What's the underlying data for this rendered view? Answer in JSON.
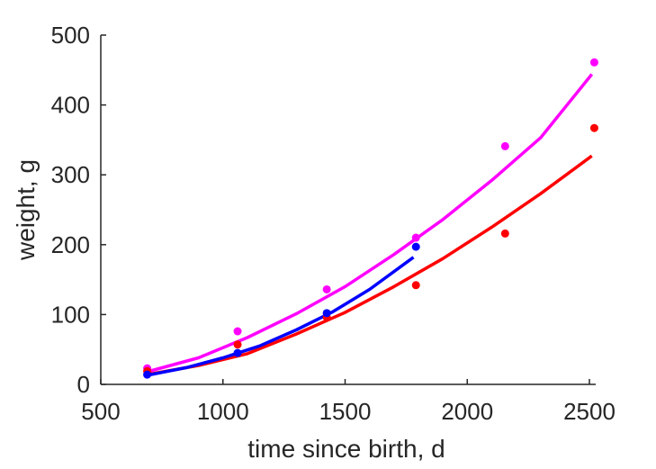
{
  "chart_data": {
    "type": "scatter",
    "title": "",
    "xlabel": "time since birth, d",
    "ylabel": "weight, g",
    "xlim": [
      500,
      2500
    ],
    "ylim": [
      0,
      500
    ],
    "xticks": [
      500,
      1000,
      1500,
      2000,
      2500
    ],
    "yticks": [
      0,
      100,
      200,
      300,
      400,
      500
    ],
    "grid": false,
    "legend": "none",
    "series": [
      {
        "color": "#ff00ff",
        "points": [
          {
            "x": 690,
            "y": 23
          },
          {
            "x": 1060,
            "y": 76
          },
          {
            "x": 1425,
            "y": 136
          },
          {
            "x": 1790,
            "y": 210
          },
          {
            "x": 2155,
            "y": 341
          },
          {
            "x": 2520,
            "y": 461
          }
        ],
        "fit": [
          {
            "x": 690,
            "y": 18
          },
          {
            "x": 900,
            "y": 38
          },
          {
            "x": 1100,
            "y": 67
          },
          {
            "x": 1300,
            "y": 101
          },
          {
            "x": 1500,
            "y": 140
          },
          {
            "x": 1700,
            "y": 186
          },
          {
            "x": 1900,
            "y": 236
          },
          {
            "x": 2100,
            "y": 292
          },
          {
            "x": 2300,
            "y": 353
          },
          {
            "x": 2510,
            "y": 444
          }
        ]
      },
      {
        "color": "#ff0000",
        "points": [
          {
            "x": 690,
            "y": 19
          },
          {
            "x": 1060,
            "y": 57
          },
          {
            "x": 1425,
            "y": 96
          },
          {
            "x": 1790,
            "y": 142
          },
          {
            "x": 2155,
            "y": 216
          },
          {
            "x": 2520,
            "y": 367
          }
        ],
        "fit": [
          {
            "x": 690,
            "y": 14
          },
          {
            "x": 900,
            "y": 27
          },
          {
            "x": 1100,
            "y": 44
          },
          {
            "x": 1300,
            "y": 72
          },
          {
            "x": 1500,
            "y": 103
          },
          {
            "x": 1700,
            "y": 140
          },
          {
            "x": 1900,
            "y": 180
          },
          {
            "x": 2100,
            "y": 225
          },
          {
            "x": 2300,
            "y": 273
          },
          {
            "x": 2510,
            "y": 327
          }
        ]
      },
      {
        "color": "#0000ff",
        "points": [
          {
            "x": 690,
            "y": 14
          },
          {
            "x": 1060,
            "y": 45
          },
          {
            "x": 1425,
            "y": 102
          },
          {
            "x": 1790,
            "y": 197
          }
        ],
        "fit": [
          {
            "x": 690,
            "y": 13
          },
          {
            "x": 850,
            "y": 24
          },
          {
            "x": 1000,
            "y": 38
          },
          {
            "x": 1150,
            "y": 55
          },
          {
            "x": 1300,
            "y": 78
          },
          {
            "x": 1450,
            "y": 104
          },
          {
            "x": 1600,
            "y": 136
          },
          {
            "x": 1780,
            "y": 182
          }
        ]
      }
    ]
  }
}
